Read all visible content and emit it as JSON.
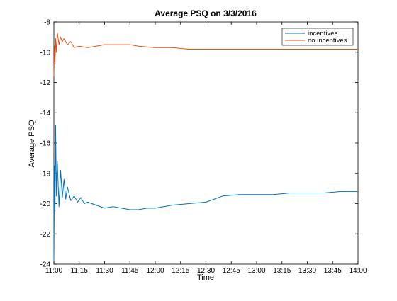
{
  "chart_data": {
    "type": "line",
    "title": "Average PSQ on 3/3/2016",
    "xlabel": "Time",
    "ylabel": "Average PSQ",
    "xlim": [
      "11:00",
      "14:00"
    ],
    "ylim": [
      -24,
      -8
    ],
    "x_ticks": [
      "11:00",
      "11:15",
      "11:30",
      "11:45",
      "12:00",
      "12:15",
      "12:30",
      "12:45",
      "13:00",
      "13:15",
      "13:30",
      "13:45",
      "14:00"
    ],
    "y_ticks": [
      -8,
      -10,
      -12,
      -14,
      -16,
      -18,
      -20,
      -22,
      -24
    ],
    "grid": false,
    "legend_position": "top-right",
    "series": [
      {
        "name": "incentives",
        "color": "#0072bd",
        "x": [
          "11:00",
          "11:00:20",
          "11:00:40",
          "11:01",
          "11:01:30",
          "11:02",
          "11:03",
          "11:04",
          "11:05",
          "11:06",
          "11:07",
          "11:08",
          "11:10",
          "11:12",
          "11:14",
          "11:16",
          "11:18",
          "11:20",
          "11:25",
          "11:30",
          "11:35",
          "11:40",
          "11:45",
          "11:50",
          "11:55",
          "12:00",
          "12:10",
          "12:20",
          "12:30",
          "12:40",
          "12:50",
          "13:00",
          "13:10",
          "13:20",
          "13:30",
          "13:40",
          "13:50",
          "14:00"
        ],
        "values": [
          -23.8,
          -17.5,
          -20.5,
          -14.8,
          -19.5,
          -17.2,
          -20.2,
          -17.8,
          -19.6,
          -18.4,
          -19.7,
          -18.9,
          -19.8,
          -19.5,
          -19.9,
          -19.6,
          -20.0,
          -19.9,
          -20.1,
          -20.3,
          -20.2,
          -20.3,
          -20.4,
          -20.4,
          -20.3,
          -20.3,
          -20.1,
          -20.0,
          -19.9,
          -19.5,
          -19.4,
          -19.4,
          -19.4,
          -19.3,
          -19.3,
          -19.3,
          -19.2,
          -19.2
        ]
      },
      {
        "name": "no incentives",
        "color": "#d95319",
        "x": [
          "11:00",
          "11:00:20",
          "11:00:40",
          "11:01",
          "11:01:30",
          "11:02",
          "11:03",
          "11:04",
          "11:05",
          "11:06",
          "11:08",
          "11:10",
          "11:12",
          "11:15",
          "11:20",
          "11:25",
          "11:30",
          "11:40",
          "11:45",
          "11:50",
          "12:00",
          "12:10",
          "12:20",
          "12:30",
          "12:40",
          "12:50",
          "13:00",
          "13:15",
          "13:30",
          "13:45",
          "14:00"
        ],
        "values": [
          -11.6,
          -9.6,
          -10.8,
          -9.1,
          -10.0,
          -8.7,
          -9.5,
          -9.0,
          -9.3,
          -9.1,
          -9.5,
          -9.3,
          -9.7,
          -9.6,
          -9.7,
          -9.6,
          -9.5,
          -9.5,
          -9.5,
          -9.6,
          -9.7,
          -9.7,
          -9.8,
          -9.8,
          -9.8,
          -9.8,
          -9.8,
          -9.8,
          -9.8,
          -9.8,
          -9.8
        ]
      }
    ]
  }
}
